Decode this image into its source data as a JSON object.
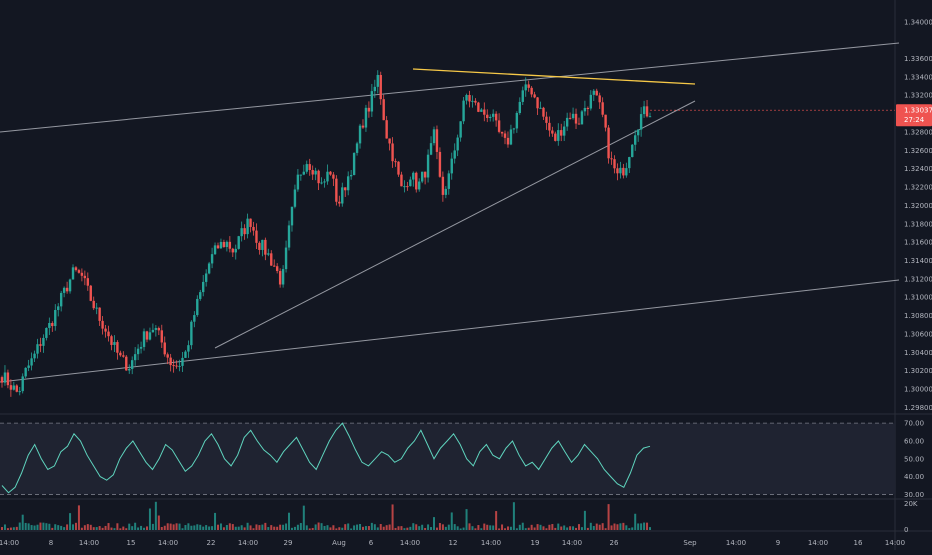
{
  "chart_data": {
    "type": "candlestick",
    "colors": {
      "background": "#131722",
      "up": "#26a69a",
      "down": "#ef5350",
      "trendline": "#9598a1",
      "resistance": "#f7c948",
      "rsi_line": "#5fd4be",
      "rsi_band": "#1f2331",
      "price_badge": "#ef5350",
      "axis_text": "#b2b5be"
    },
    "price_axis": {
      "ticks": [
        "1.34000",
        "1.33600",
        "1.33400",
        "1.33200",
        "1.33000",
        "1.32800",
        "1.32600",
        "1.32400",
        "1.32200",
        "1.32000",
        "1.31800",
        "1.31600",
        "1.31400",
        "1.31200",
        "1.31000",
        "1.30800",
        "1.30600",
        "1.30400",
        "1.30200",
        "1.30000",
        "1.29800"
      ],
      "current_price": "1.33037",
      "countdown": "27:24",
      "ylim": [
        1.2975,
        1.3415
      ]
    },
    "rsi_axis": {
      "ticks": [
        "70.00",
        "60.00",
        "50.00",
        "40.00",
        "30.00"
      ],
      "upper": 70,
      "lower": 30,
      "ylim": [
        28,
        74
      ]
    },
    "volume_axis": {
      "ticks": [
        "20K",
        "0"
      ]
    },
    "time_axis": {
      "labels": [
        "14:00",
        "8",
        "14:00",
        "15",
        "14:00",
        "22",
        "14:00",
        "29",
        "Aug",
        "6",
        "14:00",
        "12",
        "14:00",
        "19",
        "14:00",
        "26",
        "Sep",
        "14:00",
        "9",
        "14:00",
        "16",
        "14:00"
      ]
    },
    "key_prices": [
      1.3015,
      1.3005,
      1.2995,
      1.302,
      1.3035,
      1.3055,
      1.307,
      1.309,
      1.311,
      1.3128,
      1.3122,
      1.31,
      1.308,
      1.3065,
      1.3045,
      1.303,
      1.3025,
      1.3045,
      1.306,
      1.3068,
      1.305,
      1.303,
      1.3025,
      1.304,
      1.308,
      1.311,
      1.314,
      1.3155,
      1.316,
      1.315,
      1.317,
      1.3185,
      1.316,
      1.315,
      1.3135,
      1.3115,
      1.318,
      1.323,
      1.325,
      1.324,
      1.322,
      1.324,
      1.32,
      1.3225,
      1.325,
      1.329,
      1.331,
      1.334,
      1.328,
      1.325,
      1.3215,
      1.3235,
      1.322,
      1.324,
      1.3275,
      1.321,
      1.3235,
      1.328,
      1.332,
      1.331,
      1.33,
      1.33,
      1.328,
      1.3265,
      1.329,
      1.332,
      1.333,
      1.331,
      1.329,
      1.327,
      1.3285,
      1.33,
      1.329,
      1.331,
      1.332,
      1.33,
      1.325,
      1.323,
      1.3245,
      1.328,
      1.33,
      1.3303
    ],
    "rsi_values": [
      35,
      31,
      34,
      42,
      52,
      58,
      50,
      44,
      46,
      54,
      57,
      64,
      60,
      52,
      46,
      40,
      38,
      41,
      50,
      56,
      60,
      54,
      48,
      44,
      50,
      58,
      55,
      49,
      43,
      46,
      52,
      60,
      64,
      58,
      50,
      46,
      52,
      62,
      66,
      60,
      55,
      52,
      48,
      54,
      58,
      62,
      55,
      48,
      44,
      52,
      60,
      66,
      70,
      63,
      55,
      48,
      46,
      50,
      54,
      52,
      48,
      50,
      56,
      60,
      66,
      58,
      50,
      56,
      60,
      64,
      58,
      50,
      46,
      54,
      58,
      52,
      50,
      56,
      60,
      52,
      46,
      48,
      44,
      50,
      56,
      60,
      54,
      48,
      52,
      58,
      54,
      50,
      44,
      40,
      36,
      34,
      42,
      52,
      56,
      57
    ]
  }
}
